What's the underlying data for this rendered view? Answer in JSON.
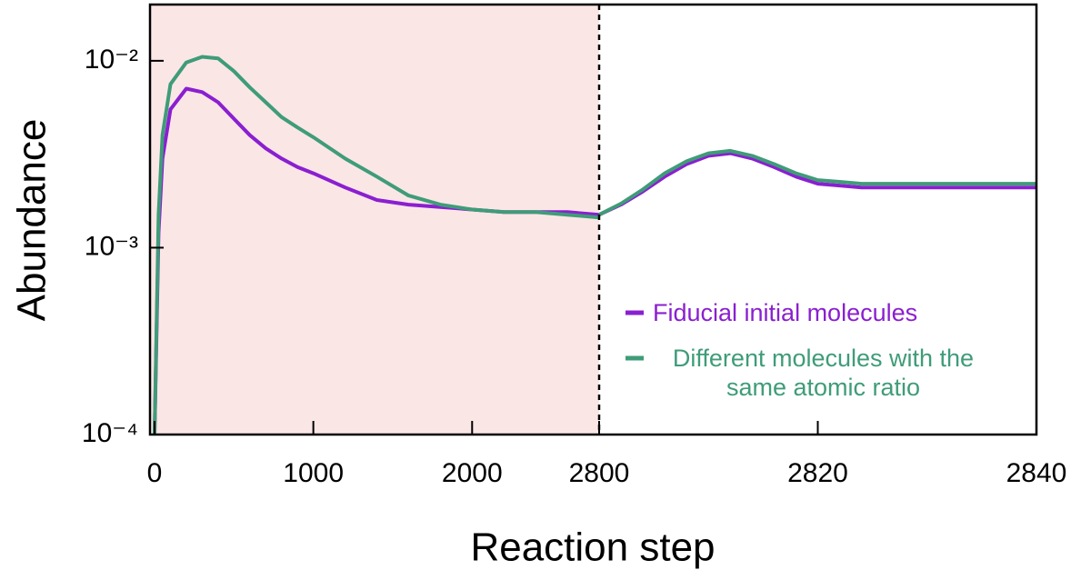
{
  "chart_data": [
    {
      "type": "line",
      "x_label": "Reaction step",
      "y_label": "Abundance",
      "log_y": true,
      "xlim": [
        0,
        2800
      ],
      "xticks": [
        0,
        1000,
        2000,
        2800
      ],
      "ylim": [
        0.0001,
        0.02
      ],
      "yticks": [
        {
          "value": 0.0001,
          "label": "10⁻⁴"
        },
        {
          "value": 0.001,
          "label": "10⁻³"
        },
        {
          "value": 0.01,
          "label": "10⁻²"
        }
      ],
      "shade_color": "#fbe6e6",
      "x": [
        0,
        25,
        50,
        100,
        200,
        300,
        400,
        500,
        600,
        700,
        800,
        900,
        1000,
        1200,
        1400,
        1600,
        1800,
        2000,
        2200,
        2400,
        2600,
        2800
      ],
      "series": [
        {
          "color": "#8a1fd0",
          "values": [
            0.0001,
            0.0012,
            0.003,
            0.0055,
            0.0071,
            0.0068,
            0.006,
            0.0049,
            0.004,
            0.0034,
            0.003,
            0.0027,
            0.0025,
            0.0021,
            0.0018,
            0.0017,
            0.00165,
            0.0016,
            0.00155,
            0.00155,
            0.00155,
            0.0015
          ]
        },
        {
          "color": "#3f9c78",
          "values": [
            0.0001,
            0.0015,
            0.004,
            0.0075,
            0.0098,
            0.0105,
            0.0103,
            0.0088,
            0.0072,
            0.006,
            0.005,
            0.0044,
            0.0039,
            0.003,
            0.0024,
            0.0019,
            0.0017,
            0.0016,
            0.00155,
            0.00155,
            0.0015,
            0.00145
          ]
        }
      ]
    },
    {
      "type": "line",
      "log_y": true,
      "xlim": [
        2800,
        2840
      ],
      "xticks": [
        2820,
        2840
      ],
      "ylim": [
        0.0001,
        0.02
      ],
      "legend": "right",
      "x": [
        2800,
        2802,
        2804,
        2806,
        2808,
        2810,
        2812,
        2814,
        2816,
        2818,
        2820,
        2822,
        2824,
        2826,
        2830,
        2835,
        2840
      ],
      "series": [
        {
          "name": "Fiducial initial molecules",
          "color": "#8a1fd0",
          "values": [
            0.0015,
            0.0017,
            0.002,
            0.0024,
            0.0028,
            0.0031,
            0.0032,
            0.003,
            0.0027,
            0.0024,
            0.0022,
            0.00215,
            0.0021,
            0.0021,
            0.0021,
            0.0021,
            0.0021
          ]
        },
        {
          "name": "Different molecules with the same atomic ratio",
          "color": "#3f9c78",
          "values": [
            0.0015,
            0.00172,
            0.00205,
            0.0025,
            0.0029,
            0.0032,
            0.0033,
            0.0031,
            0.0028,
            0.0025,
            0.0023,
            0.00225,
            0.0022,
            0.0022,
            0.0022,
            0.0022,
            0.0022
          ]
        }
      ]
    }
  ]
}
